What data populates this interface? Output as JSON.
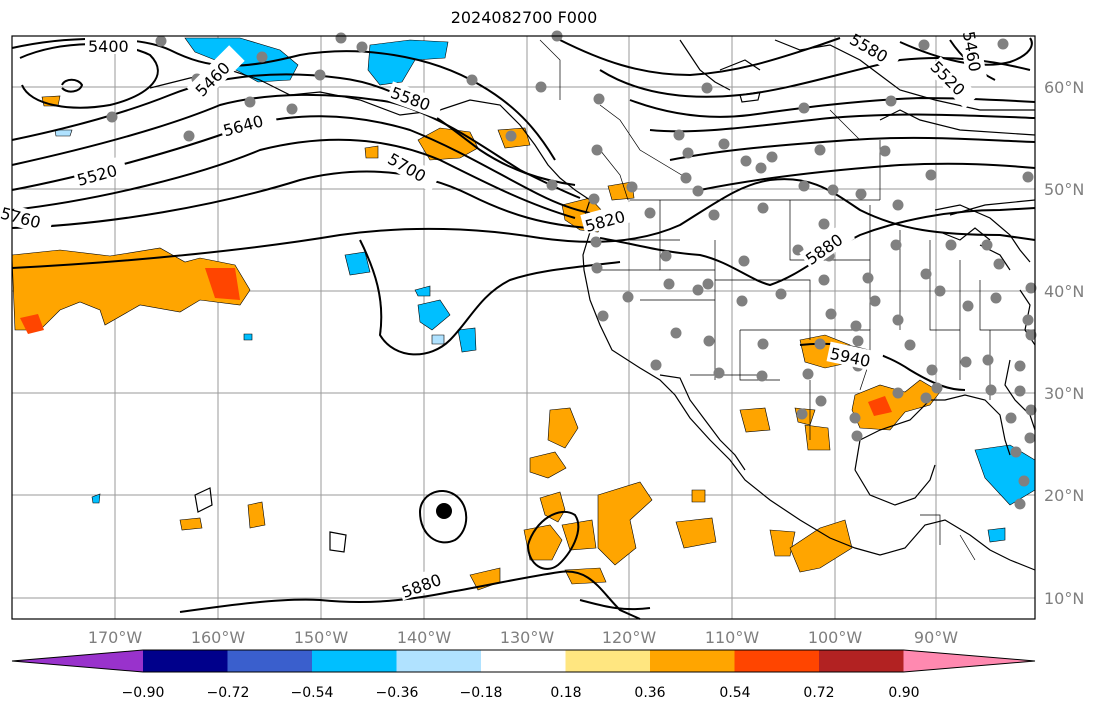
{
  "title": "2024082700 F000",
  "lon_ticks": [
    "170°W",
    "160°W",
    "150°W",
    "140°W",
    "130°W",
    "120°W",
    "110°W",
    "100°W",
    "90°W"
  ],
  "lat_ticks": [
    "60°N",
    "50°N",
    "40°N",
    "30°N",
    "20°N",
    "10°N"
  ],
  "contour_labels": [
    "5400",
    "5460",
    "5520",
    "5580",
    "5640",
    "5700",
    "5760",
    "5820",
    "5880",
    "5940",
    "5880",
    "5520",
    "5460",
    "5580"
  ],
  "colorbar": {
    "ticks": [
      "−0.90",
      "−0.72",
      "−0.54",
      "−0.36",
      "−0.18",
      "0.18",
      "0.36",
      "0.54",
      "0.72",
      "0.90"
    ],
    "colors": [
      "#9932cc",
      "#00008b",
      "#3a5fcd",
      "#00bfff",
      "#b0e2ff",
      "#ffffff",
      "#ffe680",
      "#ffa500",
      "#ff4500",
      "#b22222",
      "#ff89b0"
    ]
  }
}
